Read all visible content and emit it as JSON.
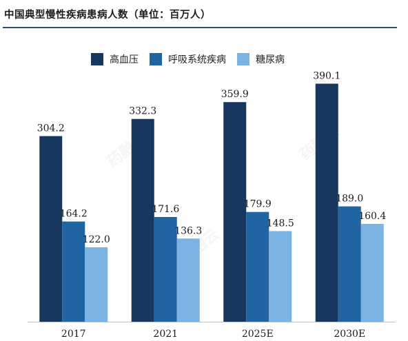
{
  "chart_data": {
    "type": "bar",
    "title": "中国典型慢性疾病患病人数（单位：百万人）",
    "categories": [
      "2017",
      "2021",
      "2025E",
      "2030E"
    ],
    "series": [
      {
        "name": "高血压",
        "values": [
          304.2,
          332.3,
          359.9,
          390.1
        ],
        "color": "#17375e"
      },
      {
        "name": "呼吸系统疾病",
        "values": [
          164.2,
          171.6,
          179.9,
          189.0
        ],
        "color": "#2065a2"
      },
      {
        "name": "糖尿病",
        "values": [
          122.0,
          136.3,
          148.5,
          160.4
        ],
        "color": "#7bb4e3"
      }
    ],
    "ylim": [
      0,
      420
    ],
    "data_labels": true,
    "grid": false,
    "legend_position": "top"
  },
  "watermark_text": "药融云"
}
